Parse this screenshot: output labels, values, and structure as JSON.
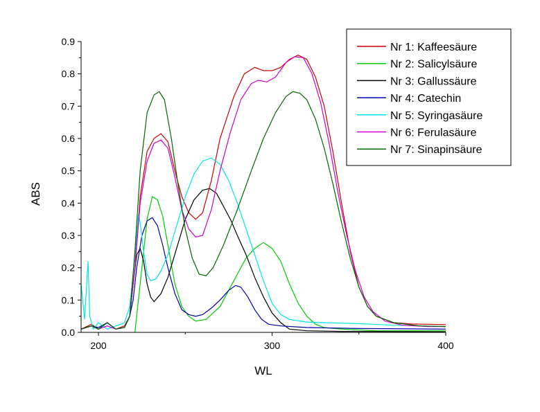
{
  "chart_data": {
    "type": "line",
    "xlabel": "WL",
    "ylabel": "ABS",
    "xlim": [
      190,
      400
    ],
    "ylim": [
      0,
      0.9
    ],
    "x_ticks": [
      200,
      300,
      400
    ],
    "y_ticks": [
      0.0,
      0.1,
      0.2,
      0.3,
      0.4,
      0.5,
      0.6,
      0.7,
      0.8,
      0.9
    ],
    "x_tick_labels": [
      "200",
      "300",
      "400"
    ],
    "y_tick_labels": [
      "0.0",
      "0.1",
      "0.2",
      "0.3",
      "0.4",
      "0.5",
      "0.6",
      "0.7",
      "0.8",
      "0.9"
    ],
    "grid": false,
    "legend_position": "top-right",
    "series": [
      {
        "name": "Nr 1: Kaffeesäure",
        "color": "#cc0000",
        "points": [
          [
            190,
            0.01
          ],
          [
            196,
            0.025
          ],
          [
            200,
            0.01
          ],
          [
            205,
            0.03
          ],
          [
            210,
            0.01
          ],
          [
            215,
            0.02
          ],
          [
            218,
            0.05
          ],
          [
            221,
            0.2
          ],
          [
            224,
            0.42
          ],
          [
            228,
            0.56
          ],
          [
            232,
            0.6
          ],
          [
            236,
            0.615
          ],
          [
            240,
            0.59
          ],
          [
            244,
            0.5
          ],
          [
            248,
            0.42
          ],
          [
            252,
            0.37
          ],
          [
            256,
            0.35
          ],
          [
            260,
            0.37
          ],
          [
            265,
            0.47
          ],
          [
            270,
            0.6
          ],
          [
            278,
            0.73
          ],
          [
            284,
            0.8
          ],
          [
            290,
            0.82
          ],
          [
            295,
            0.81
          ],
          [
            300,
            0.81
          ],
          [
            305,
            0.82
          ],
          [
            310,
            0.845
          ],
          [
            315,
            0.858
          ],
          [
            320,
            0.845
          ],
          [
            325,
            0.79
          ],
          [
            330,
            0.7
          ],
          [
            335,
            0.56
          ],
          [
            340,
            0.4
          ],
          [
            345,
            0.25
          ],
          [
            350,
            0.14
          ],
          [
            355,
            0.08
          ],
          [
            360,
            0.05
          ],
          [
            370,
            0.03
          ],
          [
            380,
            0.026
          ],
          [
            400,
            0.024
          ]
        ]
      },
      {
        "name": "Nr 2: Salicylsäure",
        "color": "#00cc00",
        "points": [
          [
            221,
            0.0
          ],
          [
            224,
            0.15
          ],
          [
            228,
            0.35
          ],
          [
            231,
            0.42
          ],
          [
            234,
            0.41
          ],
          [
            237,
            0.36
          ],
          [
            240,
            0.27
          ],
          [
            244,
            0.15
          ],
          [
            248,
            0.08
          ],
          [
            252,
            0.05
          ],
          [
            256,
            0.035
          ],
          [
            262,
            0.04
          ],
          [
            270,
            0.08
          ],
          [
            278,
            0.16
          ],
          [
            285,
            0.23
          ],
          [
            290,
            0.26
          ],
          [
            295,
            0.278
          ],
          [
            300,
            0.26
          ],
          [
            305,
            0.22
          ],
          [
            310,
            0.15
          ],
          [
            315,
            0.09
          ],
          [
            320,
            0.05
          ],
          [
            325,
            0.025
          ],
          [
            330,
            0.015
          ],
          [
            340,
            0.01
          ],
          [
            360,
            0.005
          ],
          [
            400,
            0.005
          ]
        ]
      },
      {
        "name": "Nr 3: Gallussäure",
        "color": "#000000",
        "points": [
          [
            190,
            0.01
          ],
          [
            196,
            0.02
          ],
          [
            200,
            0.01
          ],
          [
            205,
            0.03
          ],
          [
            210,
            0.01
          ],
          [
            215,
            0.015
          ],
          [
            218,
            0.05
          ],
          [
            220,
            0.15
          ],
          [
            222,
            0.24
          ],
          [
            224,
            0.26
          ],
          [
            226,
            0.22
          ],
          [
            228,
            0.15
          ],
          [
            230,
            0.11
          ],
          [
            232,
            0.095
          ],
          [
            236,
            0.12
          ],
          [
            240,
            0.17
          ],
          [
            245,
            0.26
          ],
          [
            250,
            0.35
          ],
          [
            255,
            0.41
          ],
          [
            260,
            0.44
          ],
          [
            264,
            0.445
          ],
          [
            268,
            0.43
          ],
          [
            272,
            0.39
          ],
          [
            276,
            0.35
          ],
          [
            280,
            0.3
          ],
          [
            285,
            0.24
          ],
          [
            290,
            0.17
          ],
          [
            295,
            0.11
          ],
          [
            300,
            0.06
          ],
          [
            305,
            0.03
          ],
          [
            310,
            0.01
          ],
          [
            320,
            0.005
          ],
          [
            340,
            0.003
          ],
          [
            400,
            0.002
          ]
        ]
      },
      {
        "name": "Nr 4: Catechin",
        "color": "#0000aa",
        "points": [
          [
            190,
            0.01
          ],
          [
            196,
            0.02
          ],
          [
            200,
            0.015
          ],
          [
            205,
            0.03
          ],
          [
            210,
            0.01
          ],
          [
            215,
            0.015
          ],
          [
            218,
            0.05
          ],
          [
            220,
            0.1
          ],
          [
            222,
            0.2
          ],
          [
            225,
            0.3
          ],
          [
            228,
            0.345
          ],
          [
            231,
            0.355
          ],
          [
            234,
            0.33
          ],
          [
            237,
            0.27
          ],
          [
            240,
            0.2
          ],
          [
            244,
            0.12
          ],
          [
            248,
            0.07
          ],
          [
            252,
            0.055
          ],
          [
            256,
            0.05
          ],
          [
            260,
            0.055
          ],
          [
            265,
            0.075
          ],
          [
            270,
            0.1
          ],
          [
            275,
            0.13
          ],
          [
            279,
            0.145
          ],
          [
            282,
            0.14
          ],
          [
            286,
            0.11
          ],
          [
            290,
            0.07
          ],
          [
            294,
            0.04
          ],
          [
            298,
            0.025
          ],
          [
            305,
            0.02
          ],
          [
            320,
            0.015
          ],
          [
            350,
            0.012
          ],
          [
            400,
            0.01
          ]
        ]
      },
      {
        "name": "Nr 5: Syringasäure",
        "color": "#00e5e5",
        "points": [
          [
            190,
            0.15
          ],
          [
            192,
            0.04
          ],
          [
            194,
            0.22
          ],
          [
            195,
            0.05
          ],
          [
            197,
            0.01
          ],
          [
            200,
            0.03
          ],
          [
            205,
            0.01
          ],
          [
            210,
            0.02
          ],
          [
            215,
            0.03
          ],
          [
            218,
            0.08
          ],
          [
            220,
            0.18
          ],
          [
            222,
            0.3
          ],
          [
            223,
            0.365
          ],
          [
            224,
            0.34
          ],
          [
            226,
            0.25
          ],
          [
            228,
            0.18
          ],
          [
            230,
            0.16
          ],
          [
            233,
            0.165
          ],
          [
            236,
            0.19
          ],
          [
            240,
            0.24
          ],
          [
            245,
            0.33
          ],
          [
            250,
            0.42
          ],
          [
            255,
            0.49
          ],
          [
            260,
            0.53
          ],
          [
            265,
            0.54
          ],
          [
            270,
            0.52
          ],
          [
            275,
            0.47
          ],
          [
            280,
            0.4
          ],
          [
            285,
            0.32
          ],
          [
            290,
            0.24
          ],
          [
            295,
            0.16
          ],
          [
            300,
            0.09
          ],
          [
            305,
            0.055
          ],
          [
            310,
            0.04
          ],
          [
            320,
            0.032
          ],
          [
            330,
            0.03
          ],
          [
            350,
            0.027
          ],
          [
            370,
            0.022
          ],
          [
            400,
            0.018
          ]
        ]
      },
      {
        "name": "Nr 6: Ferulasäure",
        "color": "#cc00cc",
        "points": [
          [
            190,
            0.01
          ],
          [
            196,
            0.02
          ],
          [
            200,
            0.01
          ],
          [
            205,
            0.02
          ],
          [
            210,
            0.01
          ],
          [
            215,
            0.015
          ],
          [
            218,
            0.05
          ],
          [
            221,
            0.2
          ],
          [
            224,
            0.4
          ],
          [
            228,
            0.53
          ],
          [
            232,
            0.585
          ],
          [
            236,
            0.595
          ],
          [
            240,
            0.57
          ],
          [
            244,
            0.48
          ],
          [
            248,
            0.38
          ],
          [
            252,
            0.32
          ],
          [
            256,
            0.295
          ],
          [
            260,
            0.3
          ],
          [
            265,
            0.38
          ],
          [
            270,
            0.5
          ],
          [
            276,
            0.62
          ],
          [
            282,
            0.72
          ],
          [
            288,
            0.77
          ],
          [
            292,
            0.78
          ],
          [
            297,
            0.775
          ],
          [
            302,
            0.79
          ],
          [
            308,
            0.835
          ],
          [
            313,
            0.853
          ],
          [
            318,
            0.85
          ],
          [
            323,
            0.8
          ],
          [
            328,
            0.71
          ],
          [
            333,
            0.58
          ],
          [
            338,
            0.43
          ],
          [
            343,
            0.3
          ],
          [
            348,
            0.19
          ],
          [
            353,
            0.11
          ],
          [
            358,
            0.065
          ],
          [
            365,
            0.035
          ],
          [
            375,
            0.022
          ],
          [
            390,
            0.018
          ],
          [
            400,
            0.018
          ]
        ]
      },
      {
        "name": "Nr 7: Sinapinsäure",
        "color": "#006600",
        "points": [
          [
            190,
            0.01
          ],
          [
            196,
            0.02
          ],
          [
            200,
            0.01
          ],
          [
            205,
            0.03
          ],
          [
            210,
            0.01
          ],
          [
            215,
            0.015
          ],
          [
            218,
            0.05
          ],
          [
            221,
            0.25
          ],
          [
            224,
            0.5
          ],
          [
            228,
            0.68
          ],
          [
            232,
            0.735
          ],
          [
            235,
            0.745
          ],
          [
            238,
            0.72
          ],
          [
            242,
            0.6
          ],
          [
            246,
            0.45
          ],
          [
            250,
            0.32
          ],
          [
            254,
            0.23
          ],
          [
            258,
            0.18
          ],
          [
            262,
            0.175
          ],
          [
            266,
            0.2
          ],
          [
            272,
            0.27
          ],
          [
            280,
            0.38
          ],
          [
            288,
            0.5
          ],
          [
            295,
            0.6
          ],
          [
            302,
            0.68
          ],
          [
            308,
            0.73
          ],
          [
            312,
            0.745
          ],
          [
            316,
            0.74
          ],
          [
            320,
            0.72
          ],
          [
            325,
            0.66
          ],
          [
            330,
            0.57
          ],
          [
            335,
            0.46
          ],
          [
            340,
            0.34
          ],
          [
            345,
            0.23
          ],
          [
            350,
            0.14
          ],
          [
            355,
            0.08
          ],
          [
            360,
            0.05
          ],
          [
            370,
            0.03
          ],
          [
            385,
            0.02
          ],
          [
            400,
            0.018
          ]
        ]
      }
    ]
  }
}
